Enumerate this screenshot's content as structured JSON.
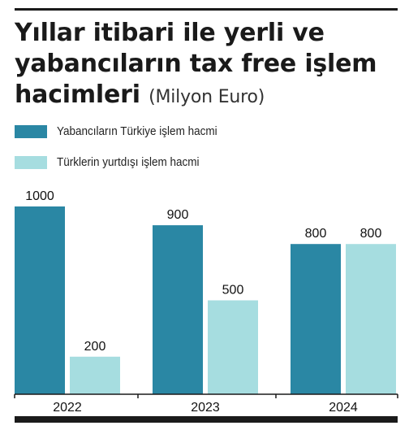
{
  "title_main": "Yıllar itibari ile yerli ve yabancıların tax free işlem hacimleri",
  "title_unit": "(Milyon Euro)",
  "colors": {
    "series1": "#2a87a4",
    "series2": "#a6dde0",
    "rule": "#1a1a1a"
  },
  "chart_data": {
    "type": "bar",
    "categories": [
      "2022",
      "2023",
      "2024"
    ],
    "series": [
      {
        "name": "Yabancıların Türkiye işlem hacmi",
        "values": [
          1000,
          900,
          800
        ]
      },
      {
        "name": "Türklerin yurtdışı işlem hacmi",
        "values": [
          200,
          500,
          800
        ]
      }
    ],
    "data_labels": [
      [
        "1000",
        "900",
        "800"
      ],
      [
        "200",
        "500",
        "800"
      ]
    ],
    "ylim": [
      0,
      1000
    ],
    "legend": "top-left",
    "grid": false
  }
}
